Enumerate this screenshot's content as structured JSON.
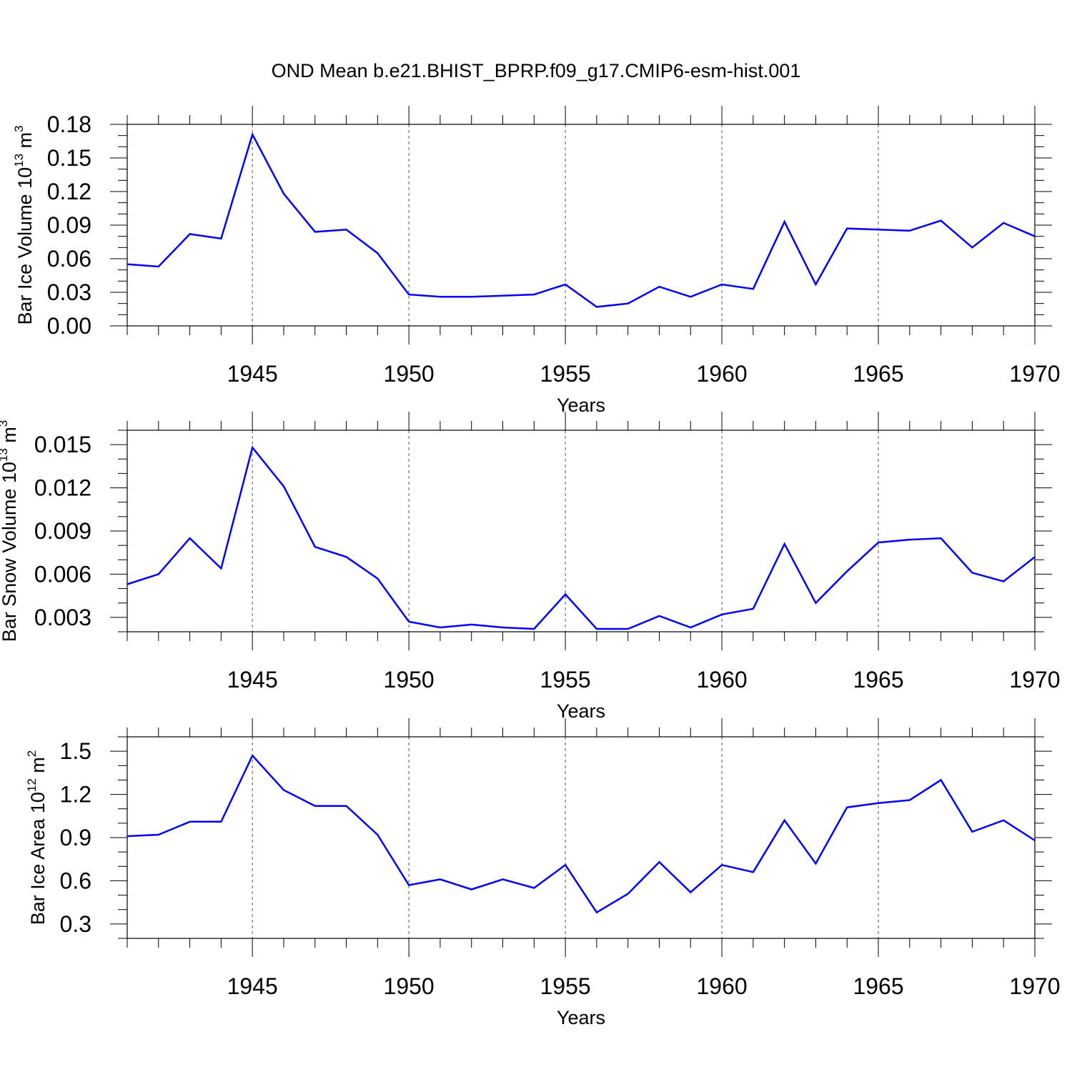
{
  "title": "OND Mean b.e21.BHIST_BPRP.f09_g17.CMIP6-esm-hist.001",
  "line_color": "#0000ff",
  "chart_data": [
    {
      "type": "line",
      "title": "OND Mean b.e21.BHIST_BPRP.f09_g17.CMIP6-esm-hist.001",
      "xlabel": "Years",
      "ylabel": {
        "base": "Bar Ice Volume 10",
        "exp": "13",
        "unit": " m",
        "unit_exp": "3"
      },
      "xlim": [
        1941,
        1970
      ],
      "ylim": [
        0.0,
        0.18
      ],
      "yticks": [
        0.0,
        0.03,
        0.06,
        0.09,
        0.12,
        0.15,
        0.18
      ],
      "ytick_labels": [
        "0.00",
        "0.03",
        "0.06",
        "0.09",
        "0.12",
        "0.15",
        "0.18"
      ],
      "xticks": [
        1945,
        1950,
        1955,
        1960,
        1965,
        1970
      ],
      "xtick_labels": [
        "1945",
        "1950",
        "1955",
        "1960",
        "1965",
        "1970"
      ],
      "grid": "vertical dashed at major x ticks",
      "series": [
        {
          "name": "Bar Ice Volume",
          "x": [
            1941,
            1942,
            1943,
            1944,
            1945,
            1946,
            1947,
            1948,
            1949,
            1950,
            1951,
            1952,
            1953,
            1954,
            1955,
            1956,
            1957,
            1958,
            1959,
            1960,
            1961,
            1962,
            1963,
            1964,
            1965,
            1966,
            1967,
            1968,
            1969,
            1970
          ],
          "values": [
            0.055,
            0.053,
            0.082,
            0.078,
            0.171,
            0.118,
            0.084,
            0.086,
            0.065,
            0.028,
            0.026,
            0.026,
            0.027,
            0.028,
            0.037,
            0.017,
            0.02,
            0.035,
            0.026,
            0.037,
            0.033,
            0.093,
            0.037,
            0.087,
            0.086,
            0.085,
            0.094,
            0.07,
            0.092,
            0.08
          ]
        }
      ]
    },
    {
      "type": "line",
      "xlabel": "Years",
      "ylabel": {
        "base": "Bar Snow Volume 10",
        "exp": "13",
        "unit": " m",
        "unit_exp": "3"
      },
      "xlim": [
        1941,
        1970
      ],
      "ylim": [
        0.002,
        0.016
      ],
      "yticks": [
        0.003,
        0.006,
        0.009,
        0.012,
        0.015
      ],
      "ytick_labels": [
        "0.003",
        "0.006",
        "0.009",
        "0.012",
        "0.015"
      ],
      "xticks": [
        1945,
        1950,
        1955,
        1960,
        1965,
        1970
      ],
      "xtick_labels": [
        "1945",
        "1950",
        "1955",
        "1960",
        "1965",
        "1970"
      ],
      "grid": "vertical dashed at major x ticks",
      "series": [
        {
          "name": "Bar Snow Volume",
          "x": [
            1941,
            1942,
            1943,
            1944,
            1945,
            1946,
            1947,
            1948,
            1949,
            1950,
            1951,
            1952,
            1953,
            1954,
            1955,
            1956,
            1957,
            1958,
            1959,
            1960,
            1961,
            1962,
            1963,
            1964,
            1965,
            1966,
            1967,
            1968,
            1969,
            1970
          ],
          "values": [
            0.0053,
            0.006,
            0.0085,
            0.0064,
            0.0148,
            0.0121,
            0.0079,
            0.0072,
            0.0057,
            0.0027,
            0.0023,
            0.0025,
            0.0023,
            0.0022,
            0.0046,
            0.0022,
            0.0022,
            0.0031,
            0.0023,
            0.0032,
            0.0036,
            0.0081,
            0.004,
            0.0062,
            0.0082,
            0.0084,
            0.0085,
            0.0061,
            0.0055,
            0.0072
          ]
        }
      ]
    },
    {
      "type": "line",
      "xlabel": "Years",
      "ylabel": {
        "base": "Bar Ice Area 10",
        "exp": "12",
        "unit": " m",
        "unit_exp": "2"
      },
      "xlim": [
        1941,
        1970
      ],
      "ylim": [
        0.2,
        1.6
      ],
      "yticks": [
        0.3,
        0.6,
        0.9,
        1.2,
        1.5
      ],
      "ytick_labels": [
        "0.3",
        "0.6",
        "0.9",
        "1.2",
        "1.5"
      ],
      "xticks": [
        1945,
        1950,
        1955,
        1960,
        1965,
        1970
      ],
      "xtick_labels": [
        "1945",
        "1950",
        "1955",
        "1960",
        "1965",
        "1970"
      ],
      "grid": "vertical dashed at major x ticks",
      "series": [
        {
          "name": "Bar Ice Area",
          "x": [
            1941,
            1942,
            1943,
            1944,
            1945,
            1946,
            1947,
            1948,
            1949,
            1950,
            1951,
            1952,
            1953,
            1954,
            1955,
            1956,
            1957,
            1958,
            1959,
            1960,
            1961,
            1962,
            1963,
            1964,
            1965,
            1966,
            1967,
            1968,
            1969,
            1970
          ],
          "values": [
            0.91,
            0.92,
            1.01,
            1.01,
            1.47,
            1.23,
            1.12,
            1.12,
            0.92,
            0.57,
            0.61,
            0.54,
            0.61,
            0.55,
            0.71,
            0.38,
            0.51,
            0.73,
            0.52,
            0.71,
            0.66,
            1.02,
            0.72,
            1.11,
            1.14,
            1.16,
            1.3,
            0.94,
            1.02,
            0.88
          ]
        }
      ]
    }
  ]
}
